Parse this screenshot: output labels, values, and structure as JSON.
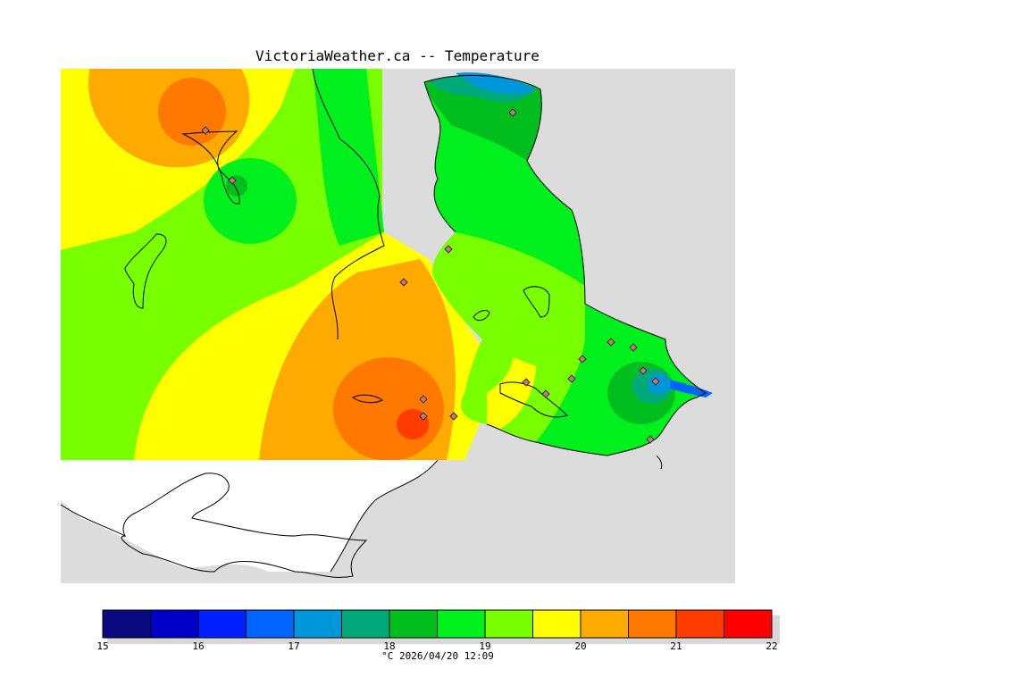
{
  "title": "VictoriaWeather.ca -- Temperature",
  "legend": {
    "colors": [
      "#0a0a80",
      "#0000c8",
      "#0020ff",
      "#0064ff",
      "#0096dc",
      "#00aa78",
      "#00be1e",
      "#00f01e",
      "#78ff00",
      "#ffff00",
      "#ffaa00",
      "#ff7800",
      "#ff3c00",
      "#ff0000"
    ],
    "ticks": [
      "15",
      "16",
      "17",
      "18",
      "19",
      "20",
      "21",
      "22"
    ],
    "unit_time": "°C  2026/04/20 12:09"
  },
  "palette": {
    "land_gray": "#dcdcdc",
    "water_white": "#ffffff",
    "coast": "#000000",
    "station_fill": "#c87878"
  }
}
